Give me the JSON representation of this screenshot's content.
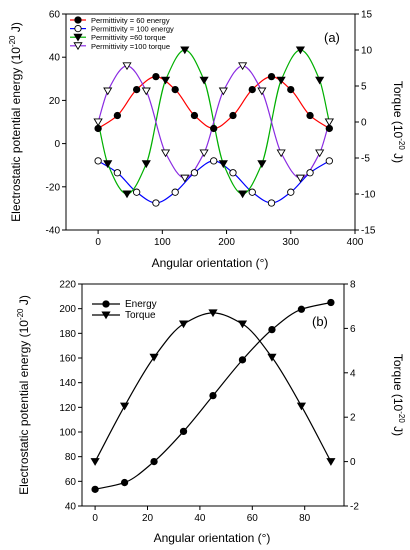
{
  "chart_data": [
    {
      "type": "line",
      "annotation": "(a)",
      "xlabel": "Angular orientation (°)",
      "ylabel_left": "Electrostatic potential energy (10^-20 J)",
      "ylabel_right": "Torque (10^-20 J)",
      "xlim": [
        -50,
        400
      ],
      "ylim_left": [
        -40,
        60
      ],
      "ylim_right": [
        -15,
        15
      ],
      "x_ticks": [
        0,
        100,
        200,
        300,
        400
      ],
      "y_ticks_left": [
        -40,
        -20,
        0,
        20,
        40,
        60
      ],
      "y_ticks_right": [
        -15,
        -10,
        -5,
        0,
        5,
        10,
        15
      ],
      "legend_position": "top-left",
      "series": [
        {
          "name": "Permittivity = 60 energy",
          "axis": "left",
          "marker": "circle-filled",
          "color": "#ff0000",
          "x": [
            0,
            30,
            60,
            90,
            120,
            150,
            180,
            210,
            240,
            270,
            300,
            330,
            360
          ],
          "y": [
            7,
            13,
            25,
            31,
            25,
            13,
            7,
            13,
            25,
            31,
            25,
            13,
            7
          ]
        },
        {
          "name": "Permittivity = 100 energy",
          "axis": "left",
          "marker": "circle-open",
          "color": "#0000ff",
          "x": [
            0,
            30,
            60,
            90,
            120,
            150,
            180,
            210,
            240,
            270,
            300,
            330,
            360
          ],
          "y": [
            -8,
            -13.5,
            -22.5,
            -27.5,
            -22.5,
            -13.5,
            -8,
            -13.5,
            -22.5,
            -27.5,
            -22.5,
            -13.5,
            -8
          ]
        },
        {
          "name": "Permittivity =60 torque",
          "axis": "right",
          "marker": "triangle-down-filled",
          "color": "#00b000",
          "x": [
            0,
            15,
            45,
            75,
            105,
            135,
            165,
            195,
            225,
            255,
            285,
            315,
            345,
            360
          ],
          "y": [
            0,
            -5.8,
            -10,
            -5.8,
            5.8,
            10,
            5.8,
            -5.8,
            -10,
            -5.8,
            5.8,
            10,
            5.8,
            0
          ]
        },
        {
          "name": "Permittivity =100 torque",
          "axis": "right",
          "marker": "triangle-down-open",
          "color": "#8a2be2",
          "x": [
            0,
            15,
            45,
            75,
            105,
            135,
            165,
            195,
            225,
            255,
            285,
            315,
            345,
            360
          ],
          "y": [
            0,
            4.3,
            7.8,
            4.3,
            -4.3,
            -7.8,
            -4.3,
            4.3,
            7.8,
            4.3,
            -4.3,
            -7.8,
            -4.3,
            0
          ]
        }
      ]
    },
    {
      "type": "line",
      "annotation": "(b)",
      "xlabel": "Angular orientation (°)",
      "ylabel_left": "Electrostatic potential energy (10^-20 J)",
      "ylabel_right": "Torque (10^-20 J)",
      "xlim": [
        -5,
        95
      ],
      "ylim_left": [
        40,
        220
      ],
      "ylim_right": [
        -2,
        8
      ],
      "x_ticks": [
        0,
        20,
        40,
        60,
        80
      ],
      "y_ticks_left": [
        40,
        60,
        80,
        100,
        120,
        140,
        160,
        180,
        200,
        220
      ],
      "y_ticks_right": [
        -2,
        0,
        2,
        4,
        6,
        8
      ],
      "legend_position": "top-left",
      "series": [
        {
          "name": "Energy",
          "axis": "left",
          "marker": "circle-filled",
          "color": "#000000",
          "x": [
            0,
            11.25,
            22.5,
            33.75,
            45,
            56.25,
            67.5,
            78.75,
            90
          ],
          "y": [
            53.5,
            59,
            76,
            100.5,
            129.5,
            158.5,
            183,
            199.5,
            205
          ]
        },
        {
          "name": "Torque",
          "axis": "right",
          "marker": "triangle-down-filled",
          "color": "#000000",
          "x": [
            0,
            11.25,
            22.5,
            33.75,
            45,
            56.25,
            67.5,
            78.75,
            90
          ],
          "y": [
            0,
            2.5,
            4.7,
            6.2,
            6.7,
            6.2,
            4.7,
            2.5,
            0
          ]
        }
      ]
    }
  ]
}
